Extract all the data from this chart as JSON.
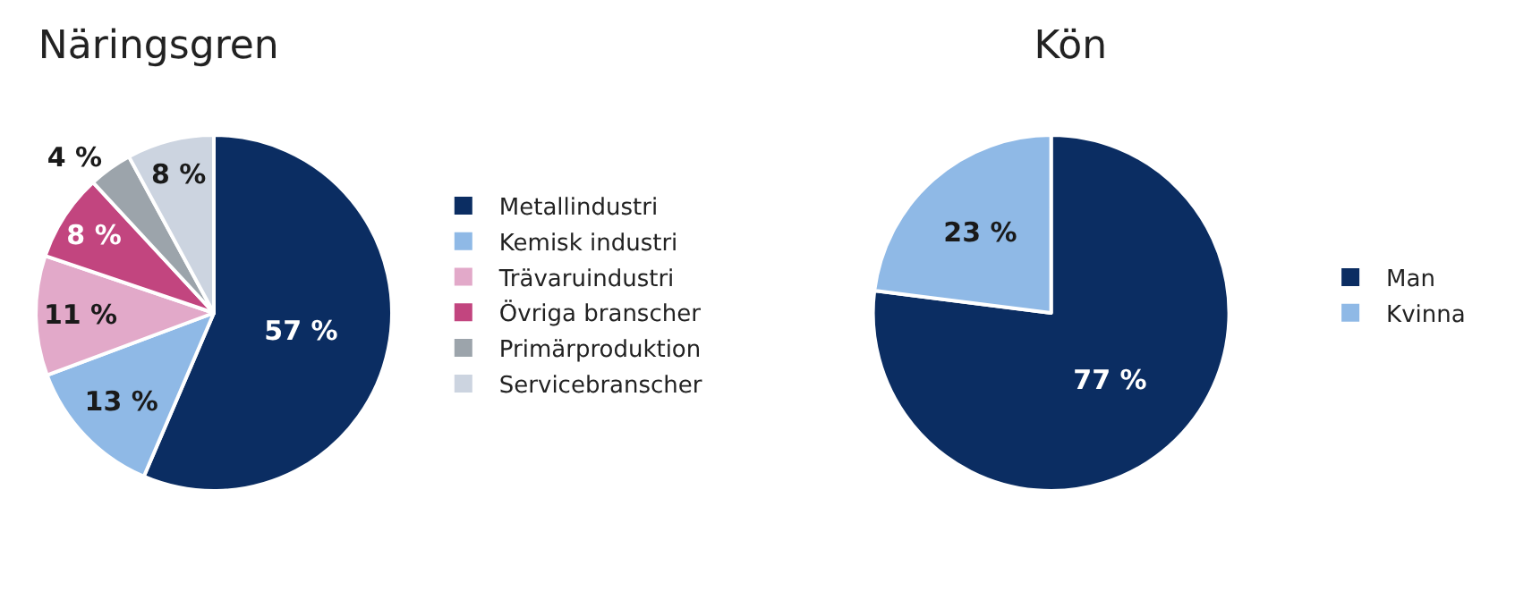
{
  "chart_data": [
    {
      "type": "pie",
      "title": "Näringsgren",
      "categories": [
        "Metallindustri",
        "Kemisk industri",
        "Trävaruindustri",
        "Övriga branscher",
        "Primärproduktion",
        "Servicebranscher"
      ],
      "values": [
        57,
        13,
        11,
        8,
        4,
        8
      ],
      "value_labels": [
        "57 %",
        "13 %",
        "11 %",
        "8 %",
        "4 %",
        "8 %"
      ],
      "colors": [
        "#0b2d62",
        "#8fb9e6",
        "#e2a9c9",
        "#c2457f",
        "#9ca4ab",
        "#ccd4e0"
      ],
      "legend": "right"
    },
    {
      "type": "pie",
      "title": "Kön",
      "categories": [
        "Man",
        "Kvinna"
      ],
      "values": [
        77,
        23
      ],
      "value_labels": [
        "77 %",
        "23 %"
      ],
      "colors": [
        "#0b2d62",
        "#8fb9e6"
      ],
      "legend": "right"
    }
  ]
}
